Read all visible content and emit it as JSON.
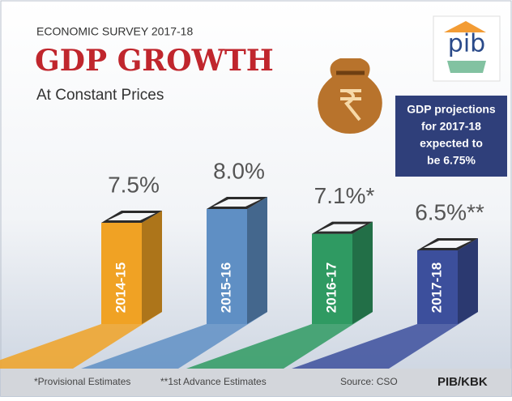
{
  "chart_data": {
    "type": "bar",
    "supertitle": "ECONOMIC SURVEY 2017-18",
    "title": "GDP GROWTH",
    "subtitle": "At Constant Prices",
    "logo": "pib",
    "callout": [
      "GDP projections",
      "for 2017-18",
      "expected to",
      "be 6.75%"
    ],
    "categories": [
      "2014-15",
      "2015-16",
      "2016-17",
      "2017-18"
    ],
    "values": [
      7.5,
      8.0,
      7.1,
      6.5
    ],
    "value_labels": [
      "7.5%",
      "8.0%",
      "7.1%*",
      "6.5%**"
    ],
    "colors": [
      "#f0a224",
      "#5f8fc4",
      "#2f9a62",
      "#3c4f9c"
    ],
    "notes": [
      "*Provisional Estimates",
      "**1st Advance Estimates"
    ],
    "source": "Source: CSO",
    "credit": "PIB/KBK"
  }
}
